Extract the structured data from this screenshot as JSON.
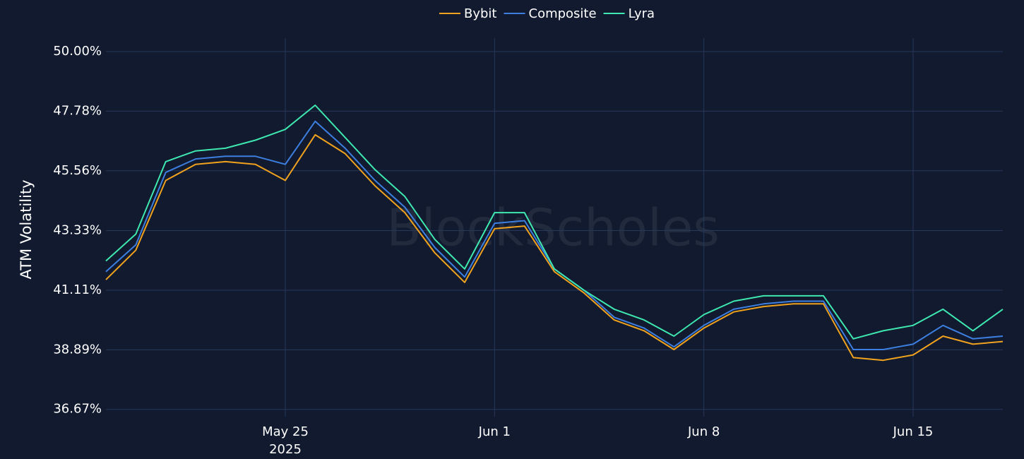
{
  "chart_data": {
    "type": "line",
    "watermark": "BlockScholes",
    "y_label": "ATM Volatility",
    "x": [
      "2025-05-19",
      "2025-05-20",
      "2025-05-21",
      "2025-05-22",
      "2025-05-23",
      "2025-05-24",
      "2025-05-25",
      "2025-05-26",
      "2025-05-27",
      "2025-05-28",
      "2025-05-29",
      "2025-05-30",
      "2025-05-31",
      "2025-06-01",
      "2025-06-02",
      "2025-06-03",
      "2025-06-04",
      "2025-06-05",
      "2025-06-06",
      "2025-06-07",
      "2025-06-08",
      "2025-06-09",
      "2025-06-10",
      "2025-06-11",
      "2025-06-12",
      "2025-06-13",
      "2025-06-14",
      "2025-06-15",
      "2025-06-16",
      "2025-06-17",
      "2025-06-18"
    ],
    "series": [
      {
        "name": "Bybit",
        "color": "#f0a21e",
        "values": [
          41.5,
          42.6,
          45.2,
          45.8,
          45.9,
          45.8,
          45.2,
          46.9,
          46.2,
          45.0,
          44.0,
          42.5,
          41.4,
          43.4,
          43.5,
          41.8,
          41.0,
          40.0,
          39.6,
          38.9,
          39.7,
          40.3,
          40.5,
          40.6,
          40.6,
          38.6,
          38.5,
          38.7,
          39.4,
          39.1,
          39.2
        ]
      },
      {
        "name": "Composite",
        "color": "#3d7fe0",
        "values": [
          41.8,
          42.8,
          45.5,
          46.0,
          46.1,
          46.1,
          45.8,
          47.4,
          46.4,
          45.2,
          44.2,
          42.7,
          41.6,
          43.6,
          43.7,
          41.9,
          41.1,
          40.1,
          39.7,
          39.0,
          39.8,
          40.4,
          40.6,
          40.7,
          40.7,
          38.9,
          38.9,
          39.1,
          39.8,
          39.3,
          39.4
        ]
      },
      {
        "name": "Lyra",
        "color": "#3ee8b0",
        "values": [
          42.2,
          43.2,
          45.9,
          46.3,
          46.4,
          46.7,
          47.1,
          48.0,
          46.8,
          45.6,
          44.6,
          43.0,
          41.9,
          44.0,
          44.0,
          41.9,
          41.1,
          40.4,
          40.0,
          39.4,
          40.2,
          40.7,
          40.9,
          40.9,
          40.9,
          39.3,
          39.6,
          39.8,
          40.4,
          39.6,
          40.4
        ]
      }
    ],
    "xlim": [
      "2025-05-19",
      "2025-06-18"
    ],
    "xticks": [
      {
        "value": "2025-05-25",
        "label": "May 25"
      },
      {
        "value": "2025-06-01",
        "label": "Jun 1"
      },
      {
        "value": "2025-06-08",
        "label": "Jun 8"
      },
      {
        "value": "2025-06-15",
        "label": "Jun 15"
      }
    ],
    "x_year_label": "2025",
    "ylim": [
      36.4,
      50.5
    ],
    "yticks": [
      {
        "value": 36.67,
        "label": "36.67%"
      },
      {
        "value": 38.89,
        "label": "38.89%"
      },
      {
        "value": 41.11,
        "label": "41.11%"
      },
      {
        "value": 43.33,
        "label": "43.33%"
      },
      {
        "value": 45.56,
        "label": "45.56%"
      },
      {
        "value": 47.78,
        "label": "47.78%"
      },
      {
        "value": 50,
        "label": "50.00%"
      }
    ],
    "grid": true
  }
}
